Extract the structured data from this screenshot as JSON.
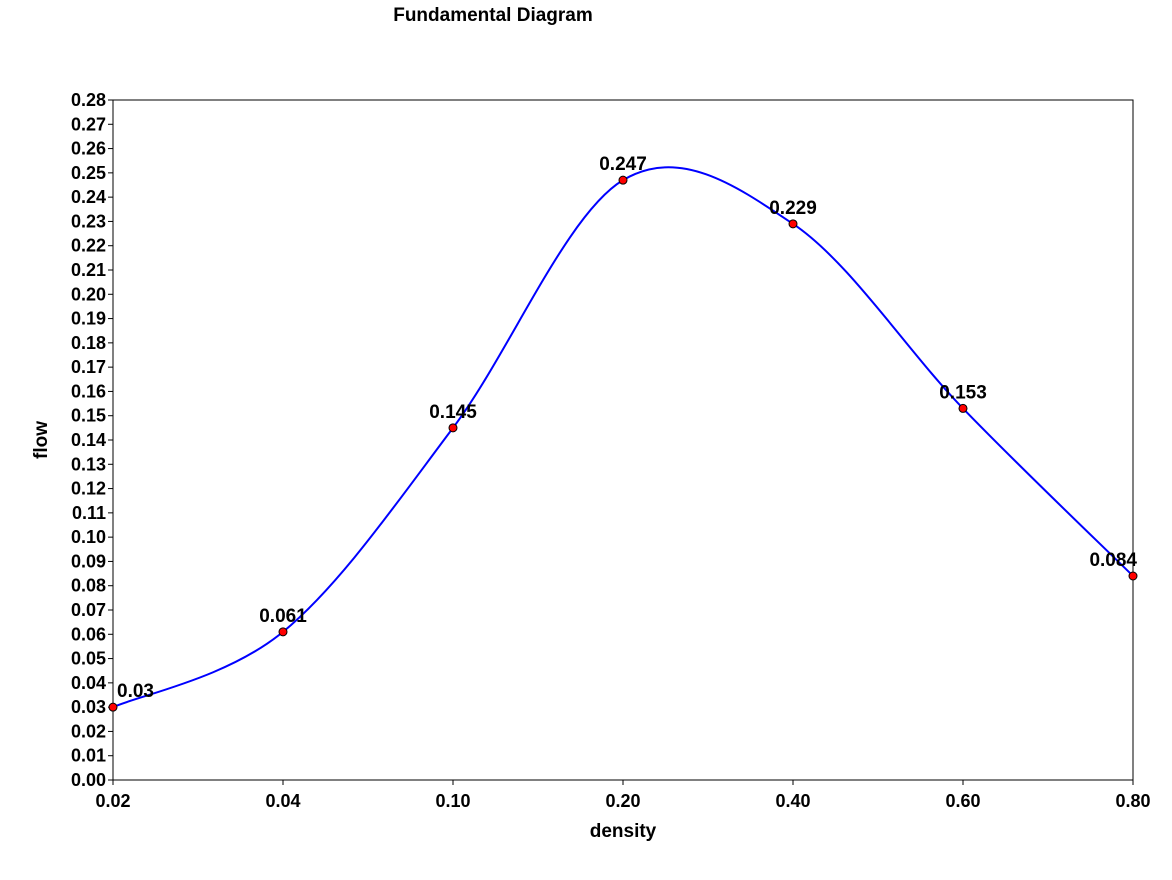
{
  "chart_data": {
    "type": "line",
    "title": "Fundamental Diagram",
    "xlabel": "density",
    "ylabel": "flow",
    "x_axis_kind": "categorical",
    "categories": [
      "0.02",
      "0.04",
      "0.10",
      "0.20",
      "0.40",
      "0.60",
      "0.80"
    ],
    "series": [
      {
        "values": [
          0.03,
          0.061,
          0.145,
          0.247,
          0.229,
          0.153,
          0.084
        ],
        "data_labels": [
          "0.03",
          "0.061",
          "0.145",
          "0.247",
          "0.229",
          "0.153",
          "0.084"
        ],
        "line_color": "#0000ff",
        "marker_color": "#ff0000",
        "smooth": true
      }
    ],
    "ylim": [
      0,
      0.28
    ],
    "ystep": 0.01,
    "y_tick_labels": [
      "0.00",
      "0.01",
      "0.02",
      "0.03",
      "0.04",
      "0.05",
      "0.06",
      "0.07",
      "0.08",
      "0.09",
      "0.10",
      "0.11",
      "0.12",
      "0.13",
      "0.14",
      "0.15",
      "0.16",
      "0.17",
      "0.18",
      "0.19",
      "0.20",
      "0.21",
      "0.22",
      "0.23",
      "0.24",
      "0.25",
      "0.26",
      "0.27",
      "0.28"
    ],
    "grid": false,
    "legend": "none"
  }
}
